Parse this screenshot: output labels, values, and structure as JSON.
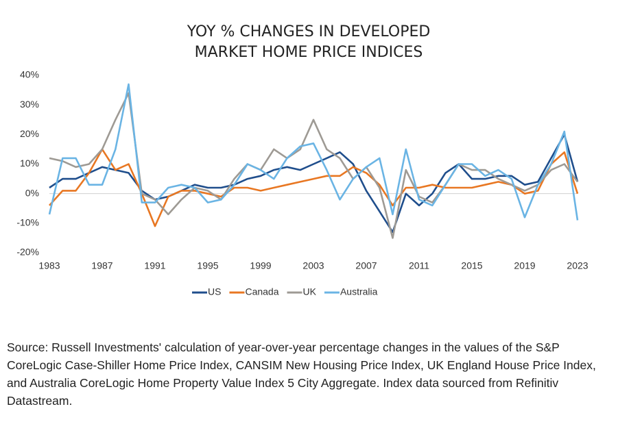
{
  "chart_data": {
    "type": "line",
    "title": "YOY % CHANGES IN DEVELOPED MARKET HOME PRICE INDICES",
    "x": [
      1983,
      1984,
      1985,
      1986,
      1987,
      1988,
      1989,
      1990,
      1991,
      1992,
      1993,
      1994,
      1995,
      1996,
      1997,
      1998,
      1999,
      2000,
      2001,
      2002,
      2003,
      2004,
      2005,
      2006,
      2007,
      2008,
      2009,
      2010,
      2011,
      2012,
      2013,
      2014,
      2015,
      2016,
      2017,
      2018,
      2019,
      2020,
      2021,
      2022,
      2023
    ],
    "series": [
      {
        "name": "US",
        "color": "#1f4e8c",
        "values": [
          2,
          5,
          5,
          7,
          9,
          8,
          7,
          1,
          -2,
          -1,
          1,
          3,
          2,
          2,
          3,
          5,
          6,
          8,
          9,
          8,
          10,
          12,
          14,
          10,
          1,
          -6,
          -13,
          0,
          -4,
          0,
          7,
          10,
          5,
          5,
          6,
          6,
          3,
          4,
          12,
          20,
          4
        ]
      },
      {
        "name": "Canada",
        "color": "#e87722",
        "values": [
          -4,
          1,
          1,
          7,
          15,
          8,
          10,
          0,
          -11,
          -1,
          1,
          1,
          0,
          -1,
          2,
          2,
          1,
          2,
          3,
          4,
          5,
          6,
          6,
          9,
          7,
          3,
          -4,
          2,
          2,
          3,
          2,
          2,
          2,
          3,
          4,
          3,
          0,
          1,
          10,
          14,
          0
        ]
      },
      {
        "name": "UK",
        "color": "#9e9a94",
        "values": [
          12,
          11,
          9,
          10,
          15,
          25,
          34,
          0,
          -2,
          -7,
          -2,
          2,
          1,
          -2,
          5,
          10,
          8,
          15,
          12,
          15,
          25,
          15,
          12,
          5,
          9,
          2,
          -15,
          8,
          -1,
          -3,
          3,
          10,
          8,
          8,
          5,
          3,
          1,
          3,
          8,
          10,
          4
        ]
      },
      {
        "name": "Australia",
        "color": "#6ab4e4",
        "values": [
          -7,
          12,
          12,
          3,
          3,
          15,
          37,
          -3,
          -3,
          2,
          3,
          2,
          -3,
          -2,
          3,
          10,
          8,
          5,
          12,
          16,
          17,
          8,
          -2,
          5,
          9,
          12,
          -7,
          15,
          -2,
          -4,
          3,
          10,
          10,
          6,
          8,
          5,
          -8,
          3,
          10,
          21,
          -9
        ]
      }
    ],
    "xlim": [
      1983,
      2023
    ],
    "xticks": [
      1983,
      1987,
      1991,
      1995,
      1999,
      2003,
      2007,
      2011,
      2015,
      2019,
      2023
    ],
    "ylim": [
      -20,
      40
    ],
    "yticks": [
      {
        "value": -20,
        "label": "-20%"
      },
      {
        "value": -10,
        "label": "-10%"
      },
      {
        "value": 0,
        "label": "0%"
      },
      {
        "value": 10,
        "label": "10%"
      },
      {
        "value": 20,
        "label": "20%"
      },
      {
        "value": 30,
        "label": "30%"
      },
      {
        "value": 40,
        "label": "40%"
      }
    ],
    "grid": false,
    "legend": "bottom"
  },
  "source": "Source: Russell Investments' calculation of year-over-year percentage changes in the values of the S&P CoreLogic Case-Shiller Home Price Index, CANSIM New Housing Price Index, UK England House Price Index, and Australia CoreLogic Home Property Value Index 5 City Aggregate. Index data sourced from Refinitiv Datastream."
}
